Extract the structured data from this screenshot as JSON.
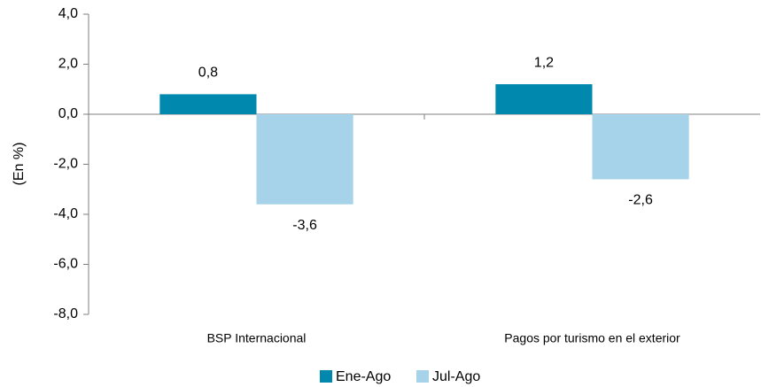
{
  "chart_data": {
    "type": "bar",
    "y_label": "(En %)",
    "categories": [
      "BSP Internacional",
      "Pagos por turismo en el exterior"
    ],
    "series": [
      {
        "name": "Ene-Ago",
        "color": "#0088ae",
        "values": [
          0.8,
          1.2
        ],
        "value_labels": [
          "0,8",
          "1,2"
        ]
      },
      {
        "name": "Jul-Ago",
        "color": "#a6d3ea",
        "values": [
          -3.6,
          -2.6
        ],
        "value_labels": [
          "-3,6",
          "-2,6"
        ]
      }
    ],
    "ylim": [
      -8,
      4
    ],
    "yticks": [
      {
        "value": -8,
        "label": "-8,0"
      },
      {
        "value": -6,
        "label": "-6,0"
      },
      {
        "value": -4,
        "label": "-4,0"
      },
      {
        "value": -2,
        "label": "-2,0"
      },
      {
        "value": 0,
        "label": "0,0"
      },
      {
        "value": 2,
        "label": "2,0"
      },
      {
        "value": 4,
        "label": "4,0"
      }
    ],
    "legend": "bottom"
  }
}
